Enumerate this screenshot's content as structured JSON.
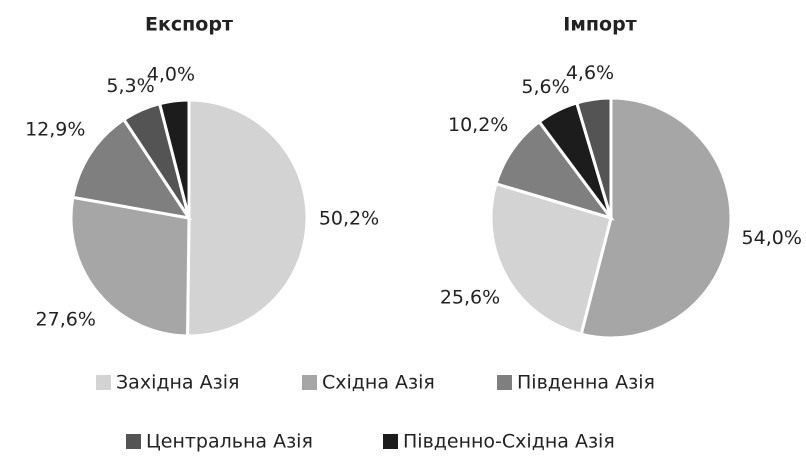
{
  "chart_data": [
    {
      "type": "pie",
      "title": "Експорт",
      "categories": [
        "Західна Азія",
        "Східна Азія",
        "Південна Азія",
        "Центральна Азія",
        "Південно-Східна Азія"
      ],
      "values": [
        50.2,
        27.6,
        12.9,
        5.3,
        4.0
      ],
      "value_labels": [
        "50,2%",
        "27,6%",
        "12,9%",
        "5,3%",
        "4,0%"
      ],
      "colors": [
        "#d3d3d3",
        "#a6a6a6",
        "#7f7f7f",
        "#545454",
        "#1c1c1c"
      ]
    },
    {
      "type": "pie",
      "title": "Імпорт",
      "categories": [
        "Східна Азія",
        "Західна Азія",
        "Південна Азія",
        "Південно-Східна Азія",
        "Центральна Азія"
      ],
      "values": [
        54.0,
        25.6,
        10.2,
        5.6,
        4.6
      ],
      "value_labels": [
        "54,0%",
        "25,6%",
        "10,2%",
        "5,6%",
        "4,6%"
      ],
      "colors": [
        "#a6a6a6",
        "#d3d3d3",
        "#7f7f7f",
        "#1c1c1c",
        "#545454"
      ]
    }
  ]
}
